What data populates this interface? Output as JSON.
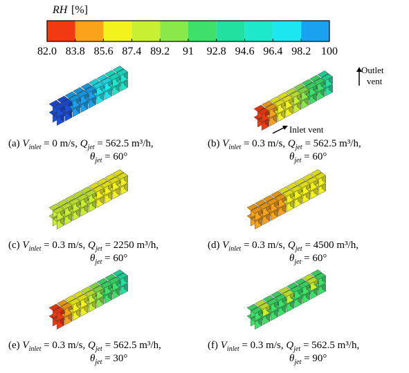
{
  "colorbar": {
    "title_var": "RH",
    "title_unit": "[%]",
    "colors": [
      "#f23a12",
      "#f9a21a",
      "#f2f21c",
      "#c8f032",
      "#8ae84a",
      "#3fe06a",
      "#22e0a0",
      "#1ee8cc",
      "#1ce6f0",
      "#1aa2f0",
      "#1a4ee0"
    ],
    "ticks": [
      {
        "value": 82,
        "label": "82.0"
      },
      83.8,
      85.6,
      87.4,
      89.2,
      91,
      92.8,
      94.6,
      96.4,
      98.2,
      100
    ]
  },
  "symbols": {
    "v": "V",
    "v_sub": "inlet",
    "q": "Q",
    "q_sub": "jet",
    "theta": "θ",
    "theta_sub": "jet"
  },
  "panels": [
    {
      "label": "(a)",
      "v": "= 0 m/s,",
      "q": "= 562.5 m³/h,",
      "theta": "= 60°"
    },
    {
      "label": "(b)",
      "v": "= 0.3 m/s,",
      "q": "= 562.5 m³/h,",
      "theta": "= 60°"
    },
    {
      "label": "(c)",
      "v": "= 0.3 m/s,",
      "q": "= 2250 m³/h,",
      "theta": "= 60°"
    },
    {
      "label": "(d)",
      "v": "= 0.3 m/s,",
      "q": "= 4500 m³/h,",
      "theta": "= 60°"
    },
    {
      "label": "(e)",
      "v": "= 0.3 m/s,",
      "q": "= 562.5 m³/h,",
      "theta": "= 30°"
    },
    {
      "label": "(f)",
      "v": "= 0.3 m/s,",
      "q": "= 562.5 m³/h,",
      "theta": "= 90°"
    }
  ],
  "annotations": {
    "outlet_1": "Outlet",
    "outlet_2": "vent",
    "inlet": "Inlet vent"
  }
}
